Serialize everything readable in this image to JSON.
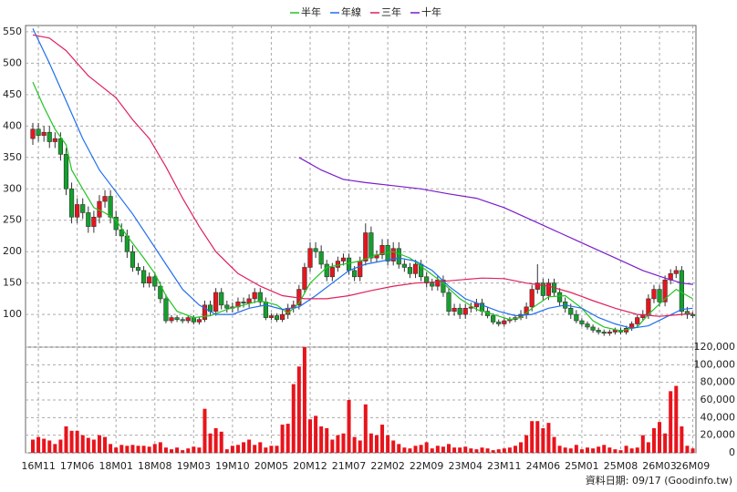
{
  "chart_data": {
    "type": "candlestick",
    "legend_position": "top",
    "grid": true,
    "categories": [
      null,
      "16M11",
      null,
      null,
      null,
      null,
      null,
      null,
      "17M06",
      null,
      null,
      null,
      null,
      null,
      null,
      "18M01",
      null,
      null,
      null,
      null,
      null,
      null,
      "18M08",
      null,
      null,
      null,
      null,
      null,
      null,
      "19M03",
      null,
      null,
      null,
      null,
      null,
      null,
      "19M10",
      null,
      null,
      null,
      null,
      null,
      null,
      "20M05",
      null,
      null,
      null,
      null,
      null,
      null,
      "20M12",
      null,
      null,
      null,
      null,
      null,
      null,
      "21M07",
      null,
      null,
      null,
      null,
      null,
      null,
      "22M02",
      null,
      null,
      null,
      null,
      null,
      null,
      "22M09",
      null,
      null,
      null,
      null,
      null,
      null,
      "23M04",
      null,
      null,
      null,
      null,
      null,
      null,
      "23M11",
      null,
      null,
      null,
      null,
      null,
      null,
      "24M06",
      null,
      null,
      null,
      null,
      null,
      null,
      "25M01",
      null,
      null,
      null,
      null,
      null,
      null,
      "25M08",
      null,
      null,
      null,
      null,
      null,
      null,
      "26M03",
      null,
      null,
      null,
      null,
      null,
      "26M09"
    ],
    "open": [
      380,
      395,
      385,
      390,
      375,
      380,
      355,
      300,
      255,
      275,
      262,
      240,
      255,
      280,
      288,
      255,
      235,
      225,
      200,
      175,
      170,
      150,
      160,
      145,
      125,
      90,
      95,
      92,
      90,
      95,
      88,
      92,
      115,
      105,
      135,
      115,
      110,
      112,
      120,
      118,
      125,
      135,
      120,
      95,
      98,
      92,
      100,
      110,
      115,
      140,
      175,
      205,
      200,
      180,
      160,
      175,
      185,
      190,
      170,
      160,
      185,
      230,
      190,
      195,
      210,
      185,
      205,
      180,
      175,
      165,
      180,
      160,
      150,
      145,
      155,
      135,
      105,
      110,
      100,
      110,
      112,
      118,
      105,
      98,
      88,
      85,
      90,
      92,
      95,
      100,
      112,
      140,
      150,
      130,
      150,
      135,
      120,
      110,
      100,
      90,
      85,
      80,
      75,
      72,
      70,
      72,
      75,
      72,
      78,
      85,
      95,
      100,
      125,
      140,
      120,
      155,
      165,
      170,
      105,
      100
    ],
    "high": [
      405,
      405,
      400,
      400,
      390,
      390,
      365,
      310,
      285,
      285,
      272,
      265,
      290,
      298,
      298,
      265,
      245,
      235,
      210,
      182,
      177,
      167,
      167,
      152,
      132,
      99,
      99,
      96,
      99,
      99,
      96,
      122,
      122,
      142,
      142,
      122,
      119,
      127,
      127,
      132,
      142,
      142,
      127,
      102,
      102,
      107,
      117,
      122,
      147,
      182,
      215,
      215,
      210,
      187,
      182,
      192,
      197,
      197,
      177,
      192,
      245,
      240,
      202,
      220,
      220,
      215,
      215,
      187,
      182,
      187,
      187,
      167,
      157,
      162,
      162,
      142,
      117,
      117,
      117,
      119,
      125,
      125,
      112,
      102,
      92,
      94,
      96,
      99,
      107,
      119,
      147,
      180,
      157,
      157,
      157,
      142,
      127,
      117,
      107,
      94,
      89,
      84,
      79,
      76,
      76,
      79,
      79,
      82,
      89,
      99,
      107,
      132,
      147,
      147,
      162,
      172,
      177,
      177,
      112,
      104
    ],
    "low": [
      370,
      375,
      375,
      365,
      365,
      345,
      290,
      245,
      245,
      252,
      230,
      230,
      245,
      270,
      245,
      225,
      215,
      190,
      168,
      163,
      143,
      143,
      138,
      118,
      86,
      86,
      88,
      86,
      86,
      84,
      84,
      88,
      98,
      98,
      108,
      103,
      103,
      105,
      111,
      111,
      118,
      113,
      91,
      91,
      88,
      88,
      93,
      103,
      108,
      133,
      168,
      190,
      173,
      153,
      153,
      168,
      178,
      163,
      153,
      153,
      178,
      183,
      183,
      188,
      178,
      178,
      173,
      168,
      158,
      158,
      153,
      143,
      138,
      138,
      128,
      98,
      98,
      93,
      93,
      103,
      105,
      98,
      94,
      84,
      81,
      81,
      86,
      88,
      91,
      93,
      105,
      133,
      123,
      123,
      128,
      113,
      103,
      93,
      86,
      81,
      76,
      71,
      68,
      66,
      66,
      68,
      68,
      68,
      74,
      81,
      91,
      93,
      118,
      113,
      113,
      148,
      158,
      98,
      93,
      94
    ],
    "close": [
      395,
      385,
      390,
      375,
      380,
      355,
      300,
      255,
      275,
      262,
      240,
      255,
      280,
      288,
      255,
      235,
      225,
      200,
      175,
      170,
      150,
      160,
      145,
      125,
      90,
      95,
      92,
      90,
      95,
      88,
      92,
      115,
      105,
      135,
      115,
      110,
      112,
      120,
      118,
      125,
      135,
      120,
      95,
      98,
      92,
      100,
      110,
      115,
      140,
      175,
      205,
      200,
      180,
      160,
      175,
      185,
      190,
      170,
      160,
      185,
      230,
      190,
      195,
      210,
      185,
      205,
      180,
      175,
      165,
      180,
      160,
      150,
      145,
      155,
      135,
      105,
      110,
      100,
      110,
      112,
      118,
      105,
      98,
      88,
      85,
      90,
      92,
      95,
      100,
      112,
      140,
      150,
      130,
      150,
      135,
      120,
      110,
      100,
      90,
      85,
      80,
      75,
      72,
      70,
      72,
      75,
      72,
      78,
      85,
      95,
      100,
      125,
      140,
      120,
      155,
      165,
      170,
      105,
      100,
      98
    ],
    "up_color": "#e8141c",
    "down_color": "#13a02c",
    "ylim": [
      48,
      560
    ],
    "yticks": [
      100,
      150,
      200,
      250,
      300,
      350,
      400,
      450,
      500,
      550
    ],
    "series": [
      {
        "name": "半年",
        "color": "#22c422",
        "x": [
          0,
          2,
          4,
          6,
          7,
          9,
          11,
          13,
          15,
          17,
          20,
          22,
          24,
          26,
          29,
          32,
          35,
          38,
          41,
          44,
          46,
          48,
          50,
          53,
          56,
          59,
          62,
          65,
          68,
          71,
          74,
          77,
          80,
          83,
          86,
          88,
          90,
          93,
          96,
          99,
          101,
          103,
          106,
          109,
          111,
          114,
          116,
          119
        ],
        "values": [
          470,
          430,
          395,
          370,
          330,
          300,
          270,
          262,
          250,
          225,
          190,
          165,
          130,
          105,
          95,
          98,
          108,
          115,
          122,
          115,
          102,
          118,
          150,
          175,
          180,
          185,
          195,
          200,
          190,
          170,
          150,
          125,
          108,
          100,
          92,
          95,
          110,
          128,
          130,
          110,
          90,
          80,
          74,
          80,
          100,
          125,
          140,
          125
        ]
      },
      {
        "name": "年線",
        "color": "#1e6ef0",
        "x": [
          0,
          3,
          6,
          9,
          12,
          15,
          18,
          21,
          24,
          27,
          30,
          33,
          36,
          39,
          42,
          45,
          48,
          51,
          54,
          57,
          60,
          63,
          66,
          69,
          72,
          75,
          78,
          81,
          84,
          87,
          90,
          93,
          96,
          99,
          102,
          105,
          108,
          111,
          114,
          117,
          119
        ],
        "values": [
          555,
          500,
          440,
          380,
          330,
          295,
          260,
          220,
          180,
          140,
          115,
          100,
          100,
          110,
          115,
          108,
          112,
          130,
          150,
          170,
          180,
          185,
          190,
          185,
          170,
          145,
          125,
          115,
          105,
          98,
          100,
          110,
          115,
          110,
          95,
          85,
          78,
          82,
          95,
          108,
          110
        ]
      },
      {
        "name": "三年",
        "color": "#e0205a",
        "x": [
          0,
          3,
          6,
          10,
          15,
          18,
          21,
          24,
          27,
          30,
          33,
          37,
          41,
          45,
          49,
          53,
          57,
          61,
          65,
          69,
          73,
          77,
          81,
          85,
          89,
          93,
          97,
          101,
          105,
          109,
          113,
          117,
          119
        ],
        "values": [
          545,
          540,
          520,
          480,
          445,
          410,
          380,
          335,
          285,
          240,
          200,
          165,
          145,
          130,
          125,
          125,
          130,
          138,
          145,
          150,
          152,
          155,
          158,
          157,
          150,
          145,
          135,
          122,
          110,
          100,
          97,
          100,
          102
        ]
      },
      {
        "name": "十年",
        "color": "#7a1ccc",
        "x": [
          48,
          52,
          56,
          60,
          65,
          70,
          75,
          80,
          85,
          90,
          95,
          100,
          105,
          110,
          114,
          117,
          119
        ],
        "values": [
          350,
          330,
          315,
          310,
          305,
          300,
          292,
          285,
          270,
          250,
          230,
          210,
          190,
          170,
          158,
          150,
          148
        ]
      }
    ],
    "volume": {
      "color": "#e8141c",
      "ylim": [
        0,
        120000
      ],
      "yticks": [
        0,
        {
          "value": 20000,
          "label": "20,000"
        },
        {
          "value": 40000,
          "label": "40,000"
        },
        {
          "value": 60000,
          "label": "60,000"
        },
        {
          "value": 80000,
          "label": "80,000"
        },
        {
          "value": 100000,
          "label": "100,000"
        },
        {
          "value": 120000,
          "label": "120,000"
        }
      ],
      "values": [
        15000,
        18000,
        16000,
        14000,
        10000,
        15000,
        30000,
        25000,
        25000,
        20000,
        17000,
        15000,
        20000,
        18000,
        10000,
        6000,
        9000,
        8000,
        9000,
        8000,
        8000,
        7000,
        10000,
        12000,
        6000,
        4000,
        6000,
        3000,
        5000,
        7000,
        6000,
        50000,
        22000,
        28000,
        24000,
        4000,
        8000,
        9000,
        12000,
        15000,
        9000,
        12000,
        6000,
        8000,
        8000,
        32000,
        33000,
        78000,
        98000,
        120000,
        38000,
        42000,
        30000,
        28000,
        15000,
        20000,
        22000,
        60000,
        18000,
        14000,
        55000,
        22000,
        20000,
        32000,
        20000,
        14000,
        10000,
        6000,
        5000,
        8000,
        9000,
        12000,
        5000,
        8000,
        7000,
        10000,
        6000,
        6000,
        7000,
        5000,
        4000,
        6000,
        5000,
        3000,
        4000,
        5000,
        6000,
        8000,
        12000,
        20000,
        36000,
        36000,
        28000,
        34000,
        18000,
        8000,
        6000,
        5000,
        9000,
        4000,
        6000,
        5000,
        7000,
        9000,
        6000,
        4000,
        3000,
        8000,
        5000,
        6000,
        20000,
        12000,
        28000,
        35000,
        22000,
        70000,
        76000,
        30000,
        8000,
        5000
      ]
    }
  },
  "footer": "資料日期: 09/17 (Goodinfo.tw)"
}
